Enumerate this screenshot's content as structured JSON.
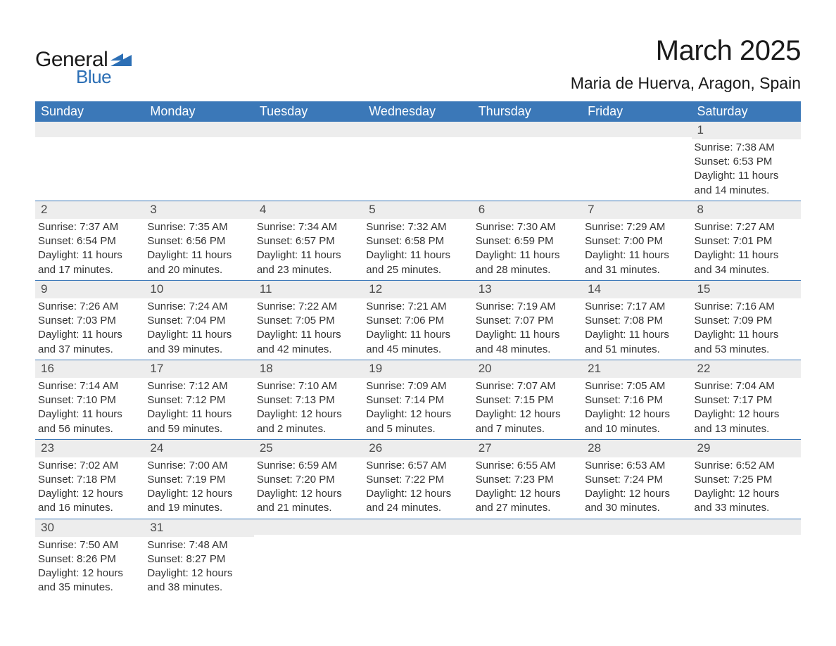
{
  "brand": {
    "word1": "General",
    "word2": "Blue",
    "logo_color": "#2c6fb5"
  },
  "title": "March 2025",
  "location": "Maria de Huerva, Aragon, Spain",
  "colors": {
    "header_bg": "#3b78b8",
    "header_text": "#ffffff",
    "row_border": "#3b78b8",
    "daynum_bg": "#ededed",
    "text": "#333333",
    "page_bg": "#ffffff"
  },
  "typography": {
    "title_fontsize": 40,
    "location_fontsize": 23,
    "dayheader_fontsize": 18,
    "daynum_fontsize": 17,
    "body_fontsize": 15
  },
  "day_headers": [
    "Sunday",
    "Monday",
    "Tuesday",
    "Wednesday",
    "Thursday",
    "Friday",
    "Saturday"
  ],
  "weeks": [
    [
      null,
      null,
      null,
      null,
      null,
      null,
      {
        "n": "1",
        "sunrise": "Sunrise: 7:38 AM",
        "sunset": "Sunset: 6:53 PM",
        "day1": "Daylight: 11 hours",
        "day2": "and 14 minutes."
      }
    ],
    [
      {
        "n": "2",
        "sunrise": "Sunrise: 7:37 AM",
        "sunset": "Sunset: 6:54 PM",
        "day1": "Daylight: 11 hours",
        "day2": "and 17 minutes."
      },
      {
        "n": "3",
        "sunrise": "Sunrise: 7:35 AM",
        "sunset": "Sunset: 6:56 PM",
        "day1": "Daylight: 11 hours",
        "day2": "and 20 minutes."
      },
      {
        "n": "4",
        "sunrise": "Sunrise: 7:34 AM",
        "sunset": "Sunset: 6:57 PM",
        "day1": "Daylight: 11 hours",
        "day2": "and 23 minutes."
      },
      {
        "n": "5",
        "sunrise": "Sunrise: 7:32 AM",
        "sunset": "Sunset: 6:58 PM",
        "day1": "Daylight: 11 hours",
        "day2": "and 25 minutes."
      },
      {
        "n": "6",
        "sunrise": "Sunrise: 7:30 AM",
        "sunset": "Sunset: 6:59 PM",
        "day1": "Daylight: 11 hours",
        "day2": "and 28 minutes."
      },
      {
        "n": "7",
        "sunrise": "Sunrise: 7:29 AM",
        "sunset": "Sunset: 7:00 PM",
        "day1": "Daylight: 11 hours",
        "day2": "and 31 minutes."
      },
      {
        "n": "8",
        "sunrise": "Sunrise: 7:27 AM",
        "sunset": "Sunset: 7:01 PM",
        "day1": "Daylight: 11 hours",
        "day2": "and 34 minutes."
      }
    ],
    [
      {
        "n": "9",
        "sunrise": "Sunrise: 7:26 AM",
        "sunset": "Sunset: 7:03 PM",
        "day1": "Daylight: 11 hours",
        "day2": "and 37 minutes."
      },
      {
        "n": "10",
        "sunrise": "Sunrise: 7:24 AM",
        "sunset": "Sunset: 7:04 PM",
        "day1": "Daylight: 11 hours",
        "day2": "and 39 minutes."
      },
      {
        "n": "11",
        "sunrise": "Sunrise: 7:22 AM",
        "sunset": "Sunset: 7:05 PM",
        "day1": "Daylight: 11 hours",
        "day2": "and 42 minutes."
      },
      {
        "n": "12",
        "sunrise": "Sunrise: 7:21 AM",
        "sunset": "Sunset: 7:06 PM",
        "day1": "Daylight: 11 hours",
        "day2": "and 45 minutes."
      },
      {
        "n": "13",
        "sunrise": "Sunrise: 7:19 AM",
        "sunset": "Sunset: 7:07 PM",
        "day1": "Daylight: 11 hours",
        "day2": "and 48 minutes."
      },
      {
        "n": "14",
        "sunrise": "Sunrise: 7:17 AM",
        "sunset": "Sunset: 7:08 PM",
        "day1": "Daylight: 11 hours",
        "day2": "and 51 minutes."
      },
      {
        "n": "15",
        "sunrise": "Sunrise: 7:16 AM",
        "sunset": "Sunset: 7:09 PM",
        "day1": "Daylight: 11 hours",
        "day2": "and 53 minutes."
      }
    ],
    [
      {
        "n": "16",
        "sunrise": "Sunrise: 7:14 AM",
        "sunset": "Sunset: 7:10 PM",
        "day1": "Daylight: 11 hours",
        "day2": "and 56 minutes."
      },
      {
        "n": "17",
        "sunrise": "Sunrise: 7:12 AM",
        "sunset": "Sunset: 7:12 PM",
        "day1": "Daylight: 11 hours",
        "day2": "and 59 minutes."
      },
      {
        "n": "18",
        "sunrise": "Sunrise: 7:10 AM",
        "sunset": "Sunset: 7:13 PM",
        "day1": "Daylight: 12 hours",
        "day2": "and 2 minutes."
      },
      {
        "n": "19",
        "sunrise": "Sunrise: 7:09 AM",
        "sunset": "Sunset: 7:14 PM",
        "day1": "Daylight: 12 hours",
        "day2": "and 5 minutes."
      },
      {
        "n": "20",
        "sunrise": "Sunrise: 7:07 AM",
        "sunset": "Sunset: 7:15 PM",
        "day1": "Daylight: 12 hours",
        "day2": "and 7 minutes."
      },
      {
        "n": "21",
        "sunrise": "Sunrise: 7:05 AM",
        "sunset": "Sunset: 7:16 PM",
        "day1": "Daylight: 12 hours",
        "day2": "and 10 minutes."
      },
      {
        "n": "22",
        "sunrise": "Sunrise: 7:04 AM",
        "sunset": "Sunset: 7:17 PM",
        "day1": "Daylight: 12 hours",
        "day2": "and 13 minutes."
      }
    ],
    [
      {
        "n": "23",
        "sunrise": "Sunrise: 7:02 AM",
        "sunset": "Sunset: 7:18 PM",
        "day1": "Daylight: 12 hours",
        "day2": "and 16 minutes."
      },
      {
        "n": "24",
        "sunrise": "Sunrise: 7:00 AM",
        "sunset": "Sunset: 7:19 PM",
        "day1": "Daylight: 12 hours",
        "day2": "and 19 minutes."
      },
      {
        "n": "25",
        "sunrise": "Sunrise: 6:59 AM",
        "sunset": "Sunset: 7:20 PM",
        "day1": "Daylight: 12 hours",
        "day2": "and 21 minutes."
      },
      {
        "n": "26",
        "sunrise": "Sunrise: 6:57 AM",
        "sunset": "Sunset: 7:22 PM",
        "day1": "Daylight: 12 hours",
        "day2": "and 24 minutes."
      },
      {
        "n": "27",
        "sunrise": "Sunrise: 6:55 AM",
        "sunset": "Sunset: 7:23 PM",
        "day1": "Daylight: 12 hours",
        "day2": "and 27 minutes."
      },
      {
        "n": "28",
        "sunrise": "Sunrise: 6:53 AM",
        "sunset": "Sunset: 7:24 PM",
        "day1": "Daylight: 12 hours",
        "day2": "and 30 minutes."
      },
      {
        "n": "29",
        "sunrise": "Sunrise: 6:52 AM",
        "sunset": "Sunset: 7:25 PM",
        "day1": "Daylight: 12 hours",
        "day2": "and 33 minutes."
      }
    ],
    [
      {
        "n": "30",
        "sunrise": "Sunrise: 7:50 AM",
        "sunset": "Sunset: 8:26 PM",
        "day1": "Daylight: 12 hours",
        "day2": "and 35 minutes."
      },
      {
        "n": "31",
        "sunrise": "Sunrise: 7:48 AM",
        "sunset": "Sunset: 8:27 PM",
        "day1": "Daylight: 12 hours",
        "day2": "and 38 minutes."
      },
      null,
      null,
      null,
      null,
      null
    ]
  ]
}
